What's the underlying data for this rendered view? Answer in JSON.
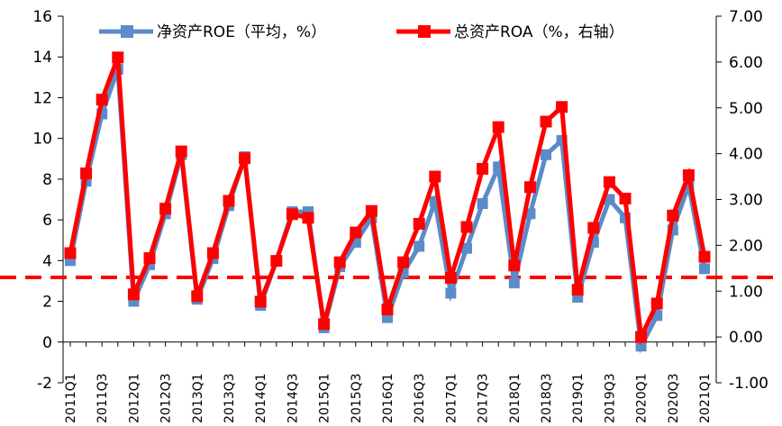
{
  "chart_data": {
    "type": "line",
    "title": "",
    "xlabel": "",
    "ylabel": "",
    "y2label": "",
    "ylim": [
      -2,
      16
    ],
    "y2lim": [
      -1.0,
      7.0
    ],
    "yticks": [
      "-2",
      "0",
      "2",
      "4",
      "6",
      "8",
      "10",
      "12",
      "14",
      "16"
    ],
    "y2ticks": [
      "-1.00",
      "0.00",
      "1.00",
      "2.00",
      "3.00",
      "4.00",
      "5.00",
      "6.00",
      "7.00"
    ],
    "categories": [
      "2011Q1",
      "2011Q2",
      "2011Q3",
      "2011Q4",
      "2012Q1",
      "2012Q2",
      "2012Q3",
      "2012Q4",
      "2013Q1",
      "2013Q2",
      "2013Q3",
      "2013Q4",
      "2014Q1",
      "2014Q2",
      "2014Q3",
      "2014Q4",
      "2015Q1",
      "2015Q2",
      "2015Q3",
      "2015Q4",
      "2016Q1",
      "2016Q2",
      "2016Q3",
      "2016Q4",
      "2017Q1",
      "2017Q2",
      "2017Q3",
      "2017Q4",
      "2018Q1",
      "2018Q2",
      "2018Q3",
      "2018Q4",
      "2019Q1",
      "2019Q2",
      "2019Q3",
      "2019Q4",
      "2020Q1",
      "2020Q2",
      "2020Q3",
      "2020Q4",
      "2021Q1"
    ],
    "xtick_labels": [
      "2011Q1",
      "2011Q3",
      "2012Q1",
      "2012Q3",
      "2013Q1",
      "2013Q3",
      "2014Q1",
      "2014Q3",
      "2015Q1",
      "2015Q3",
      "2016Q1",
      "2016Q3",
      "2017Q1",
      "2017Q3",
      "2018Q1",
      "2018Q3",
      "2019Q1",
      "2019Q3",
      "2020Q1",
      "2020Q3",
      "2021Q1"
    ],
    "legend_position": "top",
    "reference_line": {
      "axis": "right",
      "value": 1.3,
      "color": "#ff0000",
      "style": "dashed"
    },
    "series": [
      {
        "name": "净资产ROE（平均，%）",
        "axis": "left",
        "color": "#5b8bc9",
        "values": [
          4.0,
          7.9,
          11.2,
          13.4,
          2.0,
          3.8,
          6.3,
          9.2,
          2.1,
          4.1,
          6.7,
          9.1,
          1.8,
          4.0,
          6.4,
          6.4,
          0.7,
          3.7,
          4.9,
          6.1,
          1.2,
          3.4,
          4.7,
          6.9,
          2.4,
          4.6,
          6.8,
          8.6,
          2.9,
          6.3,
          9.2,
          9.9,
          2.2,
          4.9,
          7.0,
          6.1,
          -0.2,
          1.3,
          5.5,
          7.7,
          3.6
        ]
      },
      {
        "name": "总资产ROA（%，右轴）",
        "axis": "right",
        "color": "#ff0000",
        "values": [
          1.83,
          3.57,
          5.18,
          6.1,
          0.93,
          1.72,
          2.8,
          4.05,
          0.89,
          1.83,
          2.97,
          3.9,
          0.77,
          1.66,
          2.68,
          2.6,
          0.28,
          1.63,
          2.28,
          2.75,
          0.6,
          1.63,
          2.47,
          3.5,
          1.29,
          2.4,
          3.67,
          4.58,
          1.56,
          3.27,
          4.7,
          5.02,
          1.03,
          2.38,
          3.38,
          3.02,
          0.0,
          0.73,
          2.65,
          3.53,
          1.75
        ]
      }
    ]
  }
}
